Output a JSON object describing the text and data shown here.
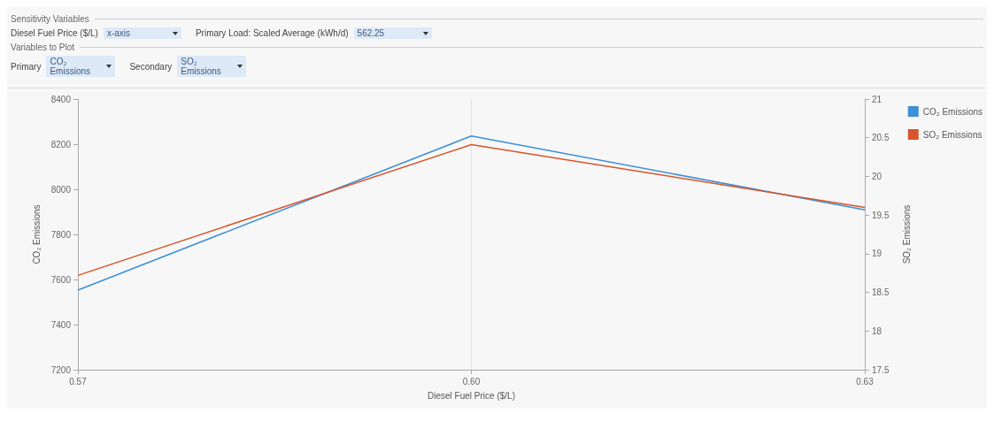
{
  "chart_data": {
    "type": "line",
    "annotations": [
      "Sensitivity Variables",
      "Diesel Fuel Price ($/L)",
      "x-axis",
      "Primary Load: Scaled Average (kWh/d)",
      "562.25",
      "Variables to Plot",
      "Primary",
      "CO₂ Emissions",
      "Secondary",
      "SO₂ Emissions"
    ],
    "xlabel": "Diesel Fuel Price ($/L)",
    "ylabel": "CO₂ Emissions",
    "y2label": "SO₂ Emissions",
    "x": [
      0.57,
      0.6,
      0.63
    ],
    "series": [
      {
        "name": "CO₂ Emissions",
        "color": "#3d8fd6",
        "values": [
          7553,
          8236,
          7909
        ]
      },
      {
        "name": "SO₂ Emissions",
        "color": "#d9542b",
        "axis": "y2",
        "values": [
          18.72,
          20.41,
          19.6
        ]
      }
    ],
    "xlim": [
      0.57,
      0.63
    ],
    "xticks": [
      0.57,
      {
        "value": 0.6,
        "label": "0.60"
      },
      0.63
    ],
    "ylim": [
      7200,
      8400
    ],
    "yticks": [
      7200,
      7400,
      7600,
      7800,
      8000,
      8200,
      8400
    ],
    "y2lim": [
      17.5,
      21
    ],
    "y2ticks": [
      17.5,
      18,
      18.5,
      19,
      19.5,
      20,
      20.5,
      21
    ],
    "grid": "x",
    "legend": "right",
    "marker": "none",
    "line_style": "solid"
  }
}
